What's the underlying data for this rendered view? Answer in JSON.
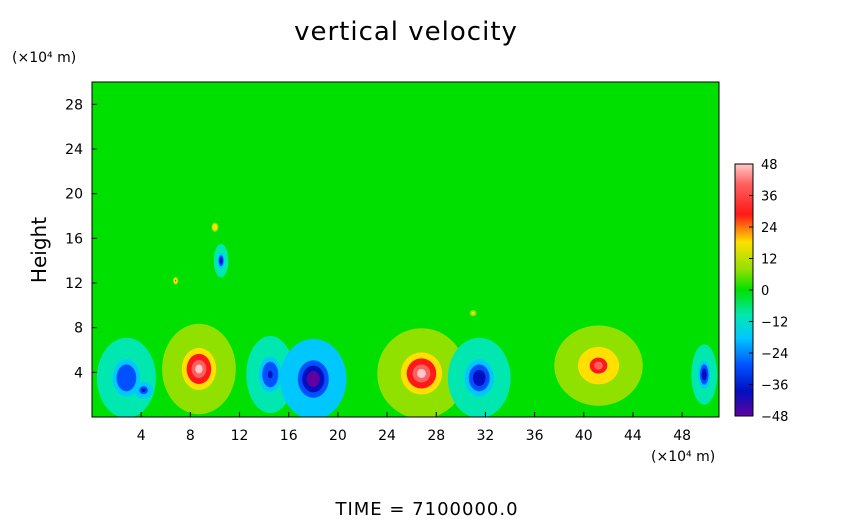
{
  "chart_data": {
    "type": "heatmap",
    "title": "vertical velocity",
    "xlabel": "",
    "ylabel": "Height",
    "x_unit": "(×10⁴ m)",
    "y_unit": "(×10⁴ m)",
    "footer": "TIME  =  7100000.0",
    "xlim": [
      0,
      51
    ],
    "ylim": [
      0,
      30
    ],
    "xticks": [
      4,
      8,
      12,
      16,
      20,
      24,
      28,
      32,
      36,
      40,
      44,
      48
    ],
    "yticks": [
      4,
      8,
      12,
      16,
      20,
      24,
      28
    ],
    "colorbar": {
      "ticks": [
        48,
        36,
        24,
        12,
        0,
        -12,
        -24,
        -36,
        -48
      ],
      "range": [
        -48,
        48
      ]
    },
    "features": [
      {
        "x": 2.8,
        "y": 3.5,
        "value": -30,
        "sx": 1.6,
        "sy": 2.4
      },
      {
        "x": 4.2,
        "y": 2.4,
        "value": -44,
        "sx": 0.5,
        "sy": 0.5
      },
      {
        "x": 8.7,
        "y": 4.3,
        "value": 48,
        "sx": 2.0,
        "sy": 2.7
      },
      {
        "x": 14.5,
        "y": 3.8,
        "value": -34,
        "sx": 1.3,
        "sy": 2.3
      },
      {
        "x": 18.0,
        "y": 3.4,
        "value": -48,
        "sx": 1.8,
        "sy": 2.4
      },
      {
        "x": 26.8,
        "y": 3.9,
        "value": 48,
        "sx": 2.4,
        "sy": 2.7
      },
      {
        "x": 31.5,
        "y": 3.5,
        "value": -36,
        "sx": 1.7,
        "sy": 2.4
      },
      {
        "x": 41.2,
        "y": 4.6,
        "value": 44,
        "sx": 2.4,
        "sy": 2.4
      },
      {
        "x": 49.8,
        "y": 3.8,
        "value": -40,
        "sx": 0.7,
        "sy": 1.8
      },
      {
        "x": 10.5,
        "y": 14.0,
        "value": -40,
        "sx": 0.4,
        "sy": 1.0
      },
      {
        "x": 10.0,
        "y": 17.0,
        "value": 28,
        "sx": 0.4,
        "sy": 0.6
      },
      {
        "x": 6.8,
        "y": 12.2,
        "value": 30,
        "sx": 0.3,
        "sy": 0.5
      },
      {
        "x": 31.0,
        "y": 9.3,
        "value": 24,
        "sx": 0.4,
        "sy": 0.4
      }
    ]
  }
}
